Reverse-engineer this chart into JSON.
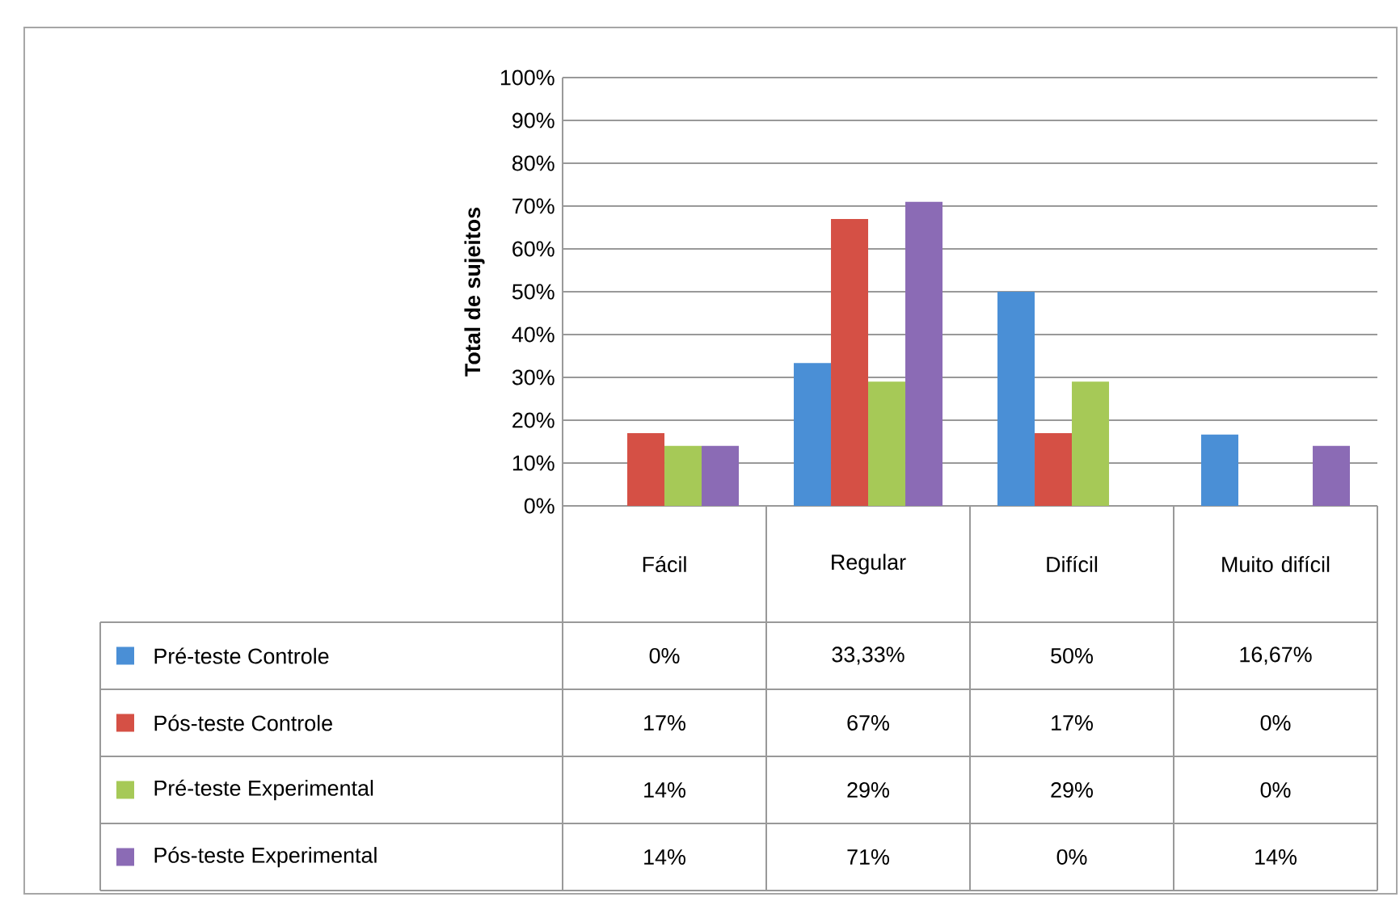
{
  "chart_data": {
    "type": "bar",
    "ylabel": "Total de sujeitos",
    "categories": [
      "Fácil",
      "Regular",
      "Difícil",
      "Muito difícil"
    ],
    "series": [
      {
        "name": "Pré-teste Controle",
        "color": "#4a8fd6",
        "values": [
          0,
          33.33,
          50,
          16.67
        ],
        "value_labels": [
          "0%",
          "33,33%",
          "50%",
          "16,67%"
        ]
      },
      {
        "name": "Pós-teste Controle",
        "color": "#d55045",
        "values": [
          17,
          67,
          17,
          0
        ],
        "value_labels": [
          "17%",
          "67%",
          "17%",
          "0%"
        ]
      },
      {
        "name": "Pré-teste Experimental",
        "color": "#a6c957",
        "values": [
          14,
          29,
          29,
          0
        ],
        "value_labels": [
          "14%",
          "29%",
          "29%",
          "0%"
        ]
      },
      {
        "name": "Pós-teste Experimental",
        "color": "#8b6bb5",
        "values": [
          14,
          71,
          0,
          14
        ],
        "value_labels": [
          "14%",
          "71%",
          "0%",
          "14%"
        ]
      }
    ],
    "ylim": [
      0,
      100
    ],
    "yticks": [
      {
        "value": 0,
        "label": "0%"
      },
      {
        "value": 10,
        "label": "10%"
      },
      {
        "value": 20,
        "label": "20%"
      },
      {
        "value": 30,
        "label": "30%"
      },
      {
        "value": 40,
        "label": "40%"
      },
      {
        "value": 50,
        "label": "50%"
      },
      {
        "value": 60,
        "label": "60%"
      },
      {
        "value": 70,
        "label": "70%"
      },
      {
        "value": 80,
        "label": "80%"
      },
      {
        "value": 90,
        "label": "90%"
      },
      {
        "value": 100,
        "label": "100%"
      }
    ],
    "grid": "y",
    "legend": "bottom"
  }
}
